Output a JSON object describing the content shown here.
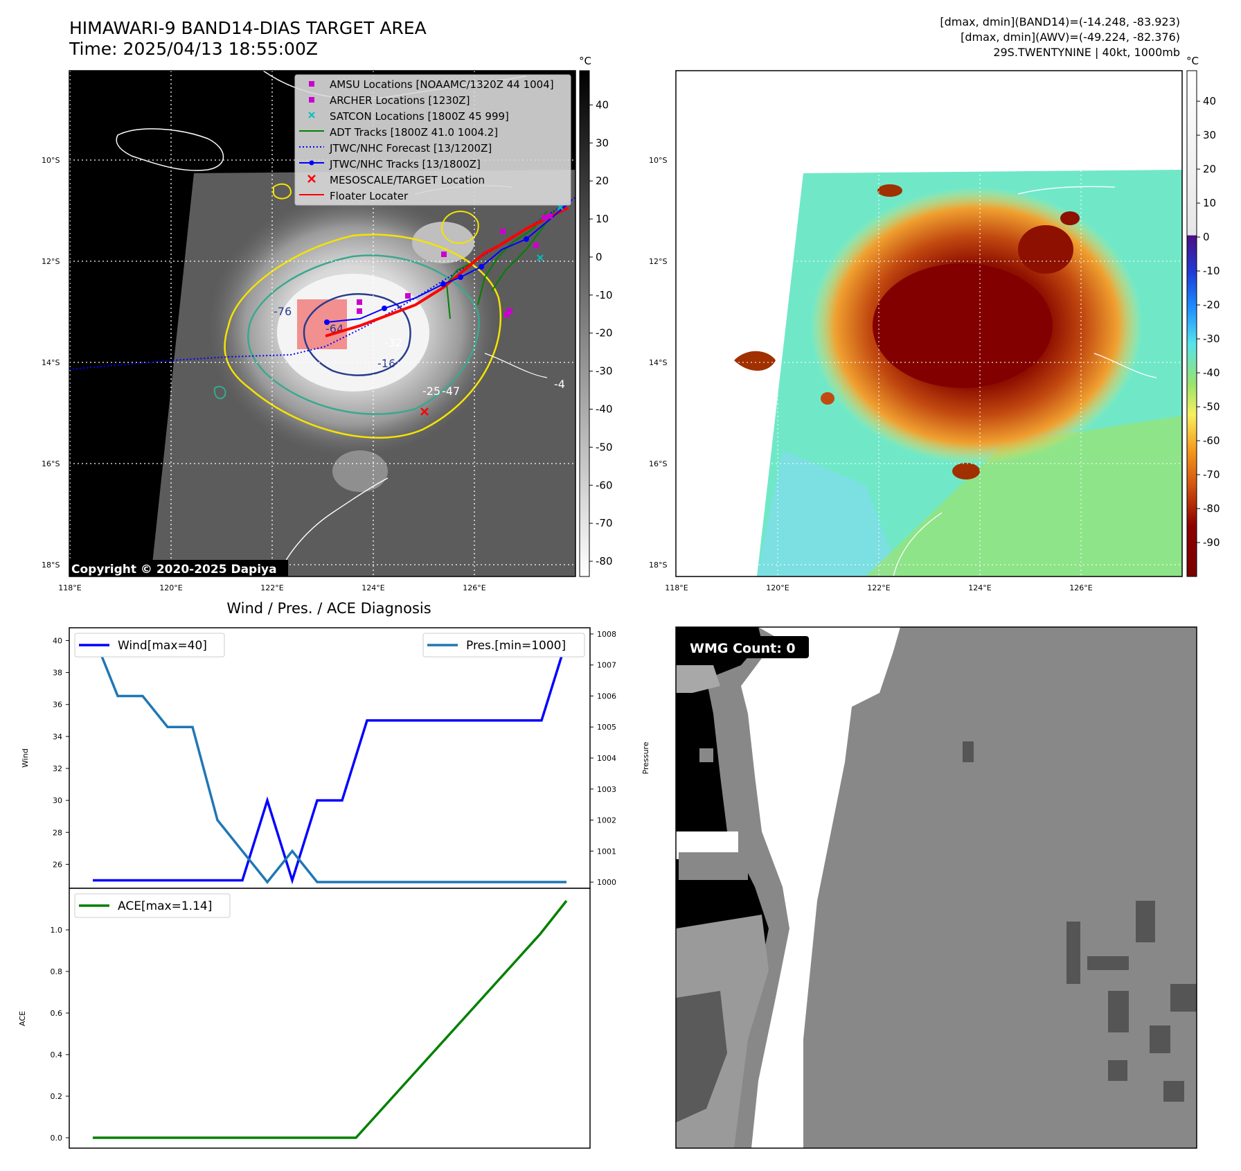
{
  "header": {
    "title_line1": "HIMAWARI-9 BAND14-DIAS TARGET AREA",
    "title_line2": "Time: 2025/04/13 18:55:00Z",
    "info_line1": "[dmax, dmin](BAND14)=(-14.248, -83.923)",
    "info_line2": "[dmax, dmin](AWV)=(-49.224, -82.376)",
    "info_line3": "29S.TWENTYNINE | 40kt, 1000mb"
  },
  "map": {
    "lon_labels": [
      "118°E",
      "120°E",
      "122°E",
      "124°E",
      "126°E"
    ],
    "lat_labels": [
      "10°S",
      "12°S",
      "14°S",
      "16°S",
      "18°S"
    ],
    "copyright": "Copyright © 2020-2025 Dapiya",
    "contour_labels": [
      "-16",
      "-64",
      "-76",
      "-32",
      "-25",
      "-47",
      "-4"
    ],
    "colorbar_unit": "°C",
    "colorbar_ticks_gray": [
      40,
      30,
      20,
      10,
      0,
      -10,
      -20,
      -30,
      -40,
      -50,
      -60,
      -70,
      -80
    ],
    "colorbar_ticks_color": [
      40,
      30,
      20,
      10,
      0,
      -10,
      -20,
      -30,
      -40,
      -50,
      -60,
      -70,
      -80,
      -90
    ],
    "legend": [
      {
        "label": "AMSU Locations [NOAAMC/1320Z 44 1004]",
        "color": "#cc00cc",
        "marker": "square"
      },
      {
        "label": "ARCHER Locations [1230Z]",
        "color": "#cc00cc",
        "marker": "square"
      },
      {
        "label": "SATCON Locations [1800Z 45 999]",
        "color": "#00bfbf",
        "marker": "x"
      },
      {
        "label": "ADT Tracks [1800Z 41.0 1004.2]",
        "color": "#008000",
        "marker": "line"
      },
      {
        "label": "JTWC/NHC Forecast [13/1200Z]",
        "color": "#0000ff",
        "marker": "dotted"
      },
      {
        "label": "JTWC/NHC Tracks [13/1800Z]",
        "color": "#0000ff",
        "marker": "line-dot"
      },
      {
        "label": "MESOSCALE/TARGET Location",
        "color": "#ff0000",
        "marker": "x"
      },
      {
        "label": "Floater Locater",
        "color": "#ff0000",
        "marker": "line"
      }
    ]
  },
  "diagnosis": {
    "title": "Wind / Pres. / ACE Diagnosis",
    "wind_label": "Wind",
    "pressure_label": "Pressure",
    "ace_label": "ACE",
    "wind_legend": "Wind[max=40]",
    "pres_legend": "Pres.[min=1000]",
    "ace_legend": "ACE[max=1.14]",
    "colors": {
      "wind": "#0000ff",
      "pressure": "#1f77b4",
      "ace": "#008000"
    }
  },
  "chart_data": [
    {
      "type": "line",
      "series": [
        {
          "name": "Wind[max=40]",
          "axis": "left",
          "values": [
            25,
            25,
            25,
            25,
            25,
            25,
            25,
            30,
            25,
            30,
            30,
            35,
            35,
            35,
            35,
            35,
            35,
            35,
            35,
            40
          ]
        },
        {
          "name": "Pres.[min=1000]",
          "axis": "right",
          "values": [
            1008,
            1006,
            1006,
            1005,
            1005,
            1002,
            1001,
            1000,
            1001,
            1000,
            1000,
            1000,
            1000,
            1000,
            1000,
            1000,
            1000,
            1000,
            1000,
            1000
          ]
        }
      ],
      "ylim_left": [
        24.5,
        40.8
      ],
      "ylim_right": [
        999.8,
        1008.2
      ],
      "yticks_left": [
        26,
        28,
        30,
        32,
        34,
        36,
        38,
        40
      ],
      "yticks_right": [
        1000,
        1001,
        1002,
        1003,
        1004,
        1005,
        1006,
        1007,
        1008
      ],
      "ylabel": "Wind",
      "ylabel_right": "Pressure",
      "legend": "top"
    },
    {
      "type": "line",
      "series": [
        {
          "name": "ACE[max=1.14]",
          "values": [
            0,
            0,
            0,
            0,
            0,
            0,
            0,
            0,
            0,
            0,
            0,
            0.14,
            0.28,
            0.42,
            0.56,
            0.7,
            0.84,
            0.98,
            1.14
          ]
        }
      ],
      "ylim": [
        -0.05,
        1.2
      ],
      "yticks": [
        0.0,
        0.2,
        0.4,
        0.6,
        0.8,
        1.0
      ],
      "ylabel": "ACE",
      "legend": "top-left"
    }
  ],
  "wmg": {
    "label": "WMG Count: 0"
  }
}
